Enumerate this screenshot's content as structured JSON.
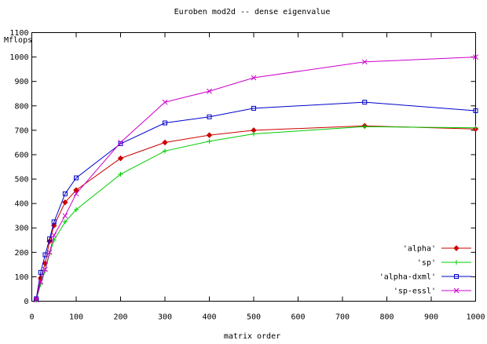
{
  "chart_data": {
    "type": "line",
    "title": "Euroben mod2d -- dense eigenvalue",
    "xlabel": "matrix order",
    "ylabel": "Mflops",
    "xlim": [
      0,
      1000
    ],
    "ylim": [
      0,
      1100
    ],
    "xticks": [
      0,
      100,
      200,
      300,
      400,
      500,
      600,
      700,
      800,
      900,
      1000
    ],
    "yticks": [
      0,
      100,
      200,
      300,
      400,
      500,
      600,
      700,
      800,
      900,
      1000,
      1100
    ],
    "grid": false,
    "legend_position": "bottom-right",
    "series": [
      {
        "name": "'alpha'",
        "color": "#cc0000",
        "marker": "diamond",
        "x": [
          10,
          20,
          30,
          40,
          50,
          75,
          100,
          200,
          300,
          400,
          500,
          750,
          1000
        ],
        "y": [
          8,
          95,
          155,
          245,
          310,
          405,
          455,
          585,
          650,
          680,
          700,
          718,
          705
        ]
      },
      {
        "name": "'sp'",
        "color": "#00cc00",
        "marker": "plus",
        "x": [
          10,
          20,
          30,
          40,
          50,
          75,
          100,
          200,
          300,
          400,
          500,
          750,
          1000
        ],
        "y": [
          4,
          70,
          125,
          195,
          250,
          325,
          375,
          520,
          615,
          655,
          685,
          715,
          710
        ]
      },
      {
        "name": "'alpha-dxml'",
        "color": "#0000cc",
        "marker": "square",
        "x": [
          10,
          20,
          30,
          40,
          50,
          75,
          100,
          200,
          300,
          400,
          500,
          750,
          1000
        ],
        "y": [
          10,
          118,
          190,
          255,
          325,
          440,
          505,
          645,
          730,
          755,
          790,
          815,
          780
        ]
      },
      {
        "name": "'sp-essl'",
        "color": "#cc00cc",
        "marker": "cross",
        "x": [
          10,
          20,
          30,
          40,
          50,
          75,
          100,
          200,
          300,
          400,
          500,
          750,
          1000
        ],
        "y": [
          5,
          80,
          130,
          200,
          270,
          350,
          440,
          650,
          815,
          860,
          915,
          980,
          1000
        ]
      }
    ]
  }
}
